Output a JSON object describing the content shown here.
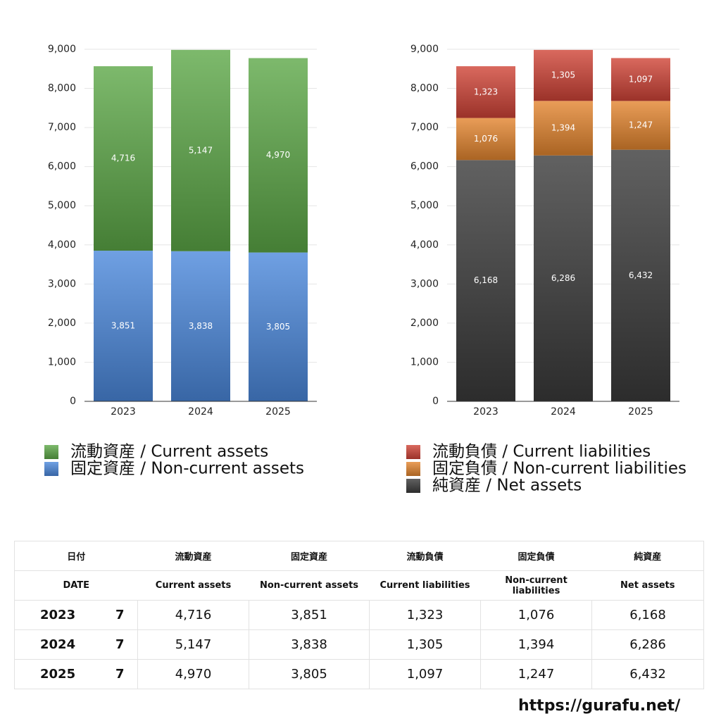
{
  "chart_data": [
    {
      "type": "stacked_bar",
      "categories": [
        "2023",
        "2024",
        "2025"
      ],
      "series": [
        {
          "name": "流動資産 / Current assets",
          "color": "#5ca847",
          "values": [
            4716,
            5147,
            4970
          ],
          "value_labels": [
            "4,716",
            "5,147",
            "4,970"
          ]
        },
        {
          "name": "固定資産 / Non-current assets",
          "color": "#4b88dc",
          "values": [
            3851,
            3838,
            3805
          ],
          "value_labels": [
            "3,851",
            "3,838",
            "3,805"
          ]
        }
      ],
      "ylim": [
        0,
        9000
      ],
      "yticks": [
        0,
        {
          "value": 1000,
          "label": "1,000"
        },
        {
          "value": 2000,
          "label": "2,000"
        },
        {
          "value": 3000,
          "label": "3,000"
        },
        {
          "value": 4000,
          "label": "4,000"
        },
        {
          "value": 5000,
          "label": "5,000"
        },
        {
          "value": 6000,
          "label": "6,000"
        },
        {
          "value": 7000,
          "label": "7,000"
        },
        {
          "value": 8000,
          "label": "8,000"
        },
        {
          "value": 9000,
          "label": "9,000"
        }
      ],
      "grid": true
    },
    {
      "type": "stacked_bar",
      "categories": [
        "2023",
        "2024",
        "2025"
      ],
      "series": [
        {
          "name": "流動負債 / Current liabilities",
          "color": "#cf4336",
          "values": [
            1323,
            1305,
            1097
          ],
          "value_labels": [
            "1,323",
            "1,305",
            "1,097"
          ]
        },
        {
          "name": "固定負債 / Non-current liabilities",
          "color": "#e3852e",
          "values": [
            1076,
            1394,
            1247
          ],
          "value_labels": [
            "1,076",
            "1,394",
            "1,247"
          ]
        },
        {
          "name": "純資産 / Net assets",
          "color": "#3a3a3a",
          "values": [
            6168,
            6286,
            6432
          ],
          "value_labels": [
            "6,168",
            "6,286",
            "6,432"
          ]
        }
      ],
      "ylim": [
        0,
        9000
      ],
      "yticks": [
        0,
        {
          "value": 1000,
          "label": "1,000"
        },
        {
          "value": 2000,
          "label": "2,000"
        },
        {
          "value": 3000,
          "label": "3,000"
        },
        {
          "value": 4000,
          "label": "4,000"
        },
        {
          "value": 5000,
          "label": "5,000"
        },
        {
          "value": 6000,
          "label": "6,000"
        },
        {
          "value": 7000,
          "label": "7,000"
        },
        {
          "value": 8000,
          "label": "8,000"
        },
        {
          "value": 9000,
          "label": "9,000"
        }
      ],
      "grid": true
    }
  ],
  "table": {
    "header": [
      "日付",
      "流動資産",
      "固定資産",
      "流動負債",
      "固定負債",
      "純資産"
    ],
    "subheader": [
      "DATE",
      "Current assets",
      "Non-current assets",
      "Current liabilities",
      "Non-current liabilities",
      "Net assets"
    ],
    "rows": [
      [
        "2023",
        "7",
        "4,716",
        "3,851",
        "1,323",
        "1,076",
        "6,168"
      ],
      [
        "2024",
        "7",
        "5,147",
        "3,838",
        "1,305",
        "1,394",
        "6,286"
      ],
      [
        "2025",
        "7",
        "4,970",
        "3,805",
        "1,097",
        "1,247",
        "6,432"
      ]
    ]
  },
  "footer": "https://gurafu.net/"
}
